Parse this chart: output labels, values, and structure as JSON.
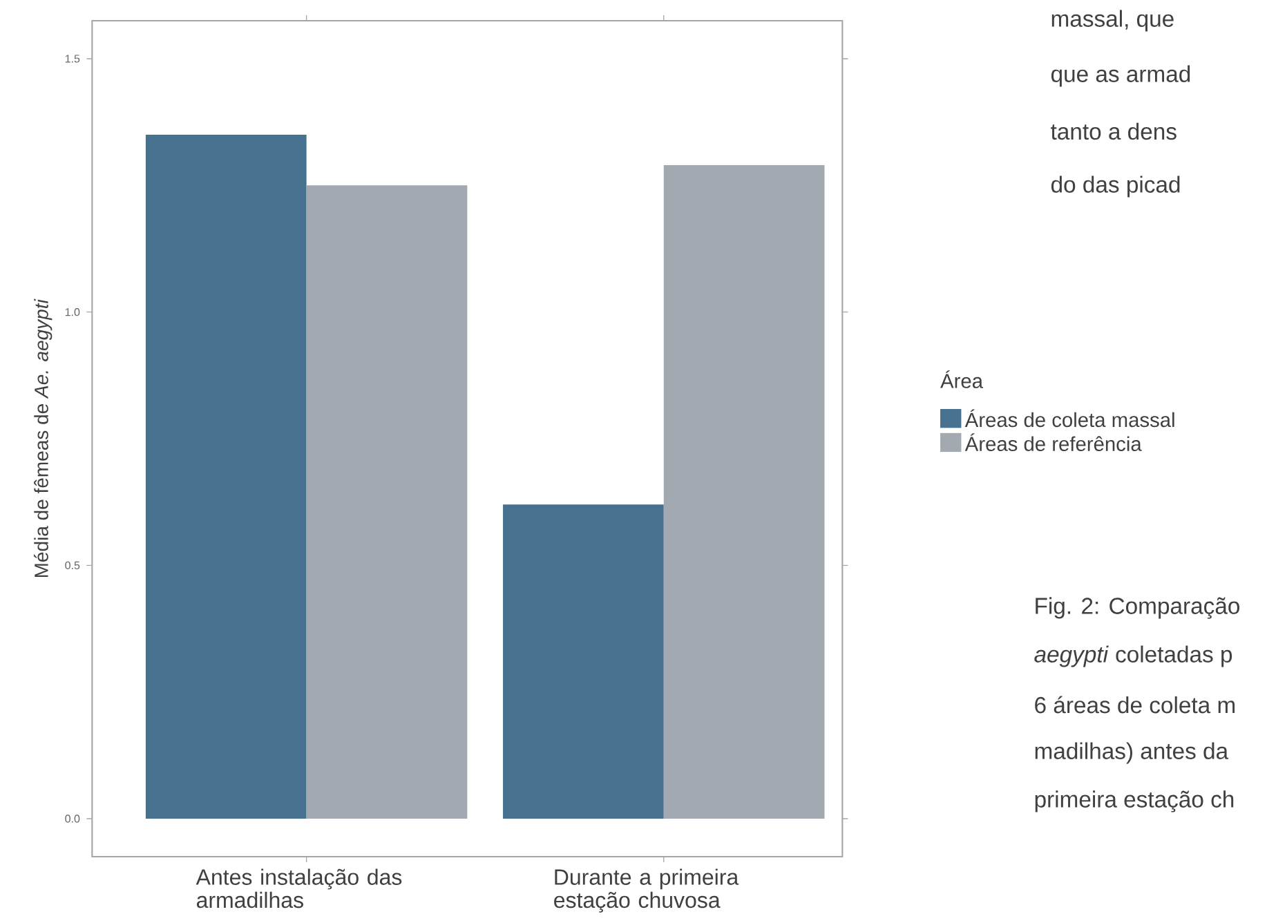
{
  "chart_data": {
    "type": "bar",
    "categories": [
      "Antes instalação das armadilhas",
      "Durante a primeira estação chuvosa"
    ],
    "ylabel": "Média de fêmeas de *Ae. aegypti*",
    "legend_title": "Área",
    "series": [
      {
        "name": "Áreas de coleta massal",
        "color": "#46718f",
        "values": [
          1.35,
          0.62
        ]
      },
      {
        "name": "Áreas de referência",
        "color": "#a2a9b1",
        "values": [
          1.25,
          1.29
        ]
      }
    ],
    "ylim": [
      -0.075,
      1.575
    ],
    "yticks": [
      {
        "value": 0,
        "label": "0.0"
      },
      {
        "value": 0.5,
        "label": "0.5"
      },
      {
        "value": 1,
        "label": "1.0"
      },
      {
        "value": 1.5,
        "label": "1.5"
      }
    ],
    "grid": false,
    "legend": "right",
    "annotations": [
      "massal, que",
      "que as armad",
      "tanto a dens",
      "do das picad",
      "Fig. 2: Comparação",
      "*aegypti* coletadas p",
      "6 áreas de coleta m",
      "madilhas) antes da",
      "primeira estação ch"
    ]
  }
}
